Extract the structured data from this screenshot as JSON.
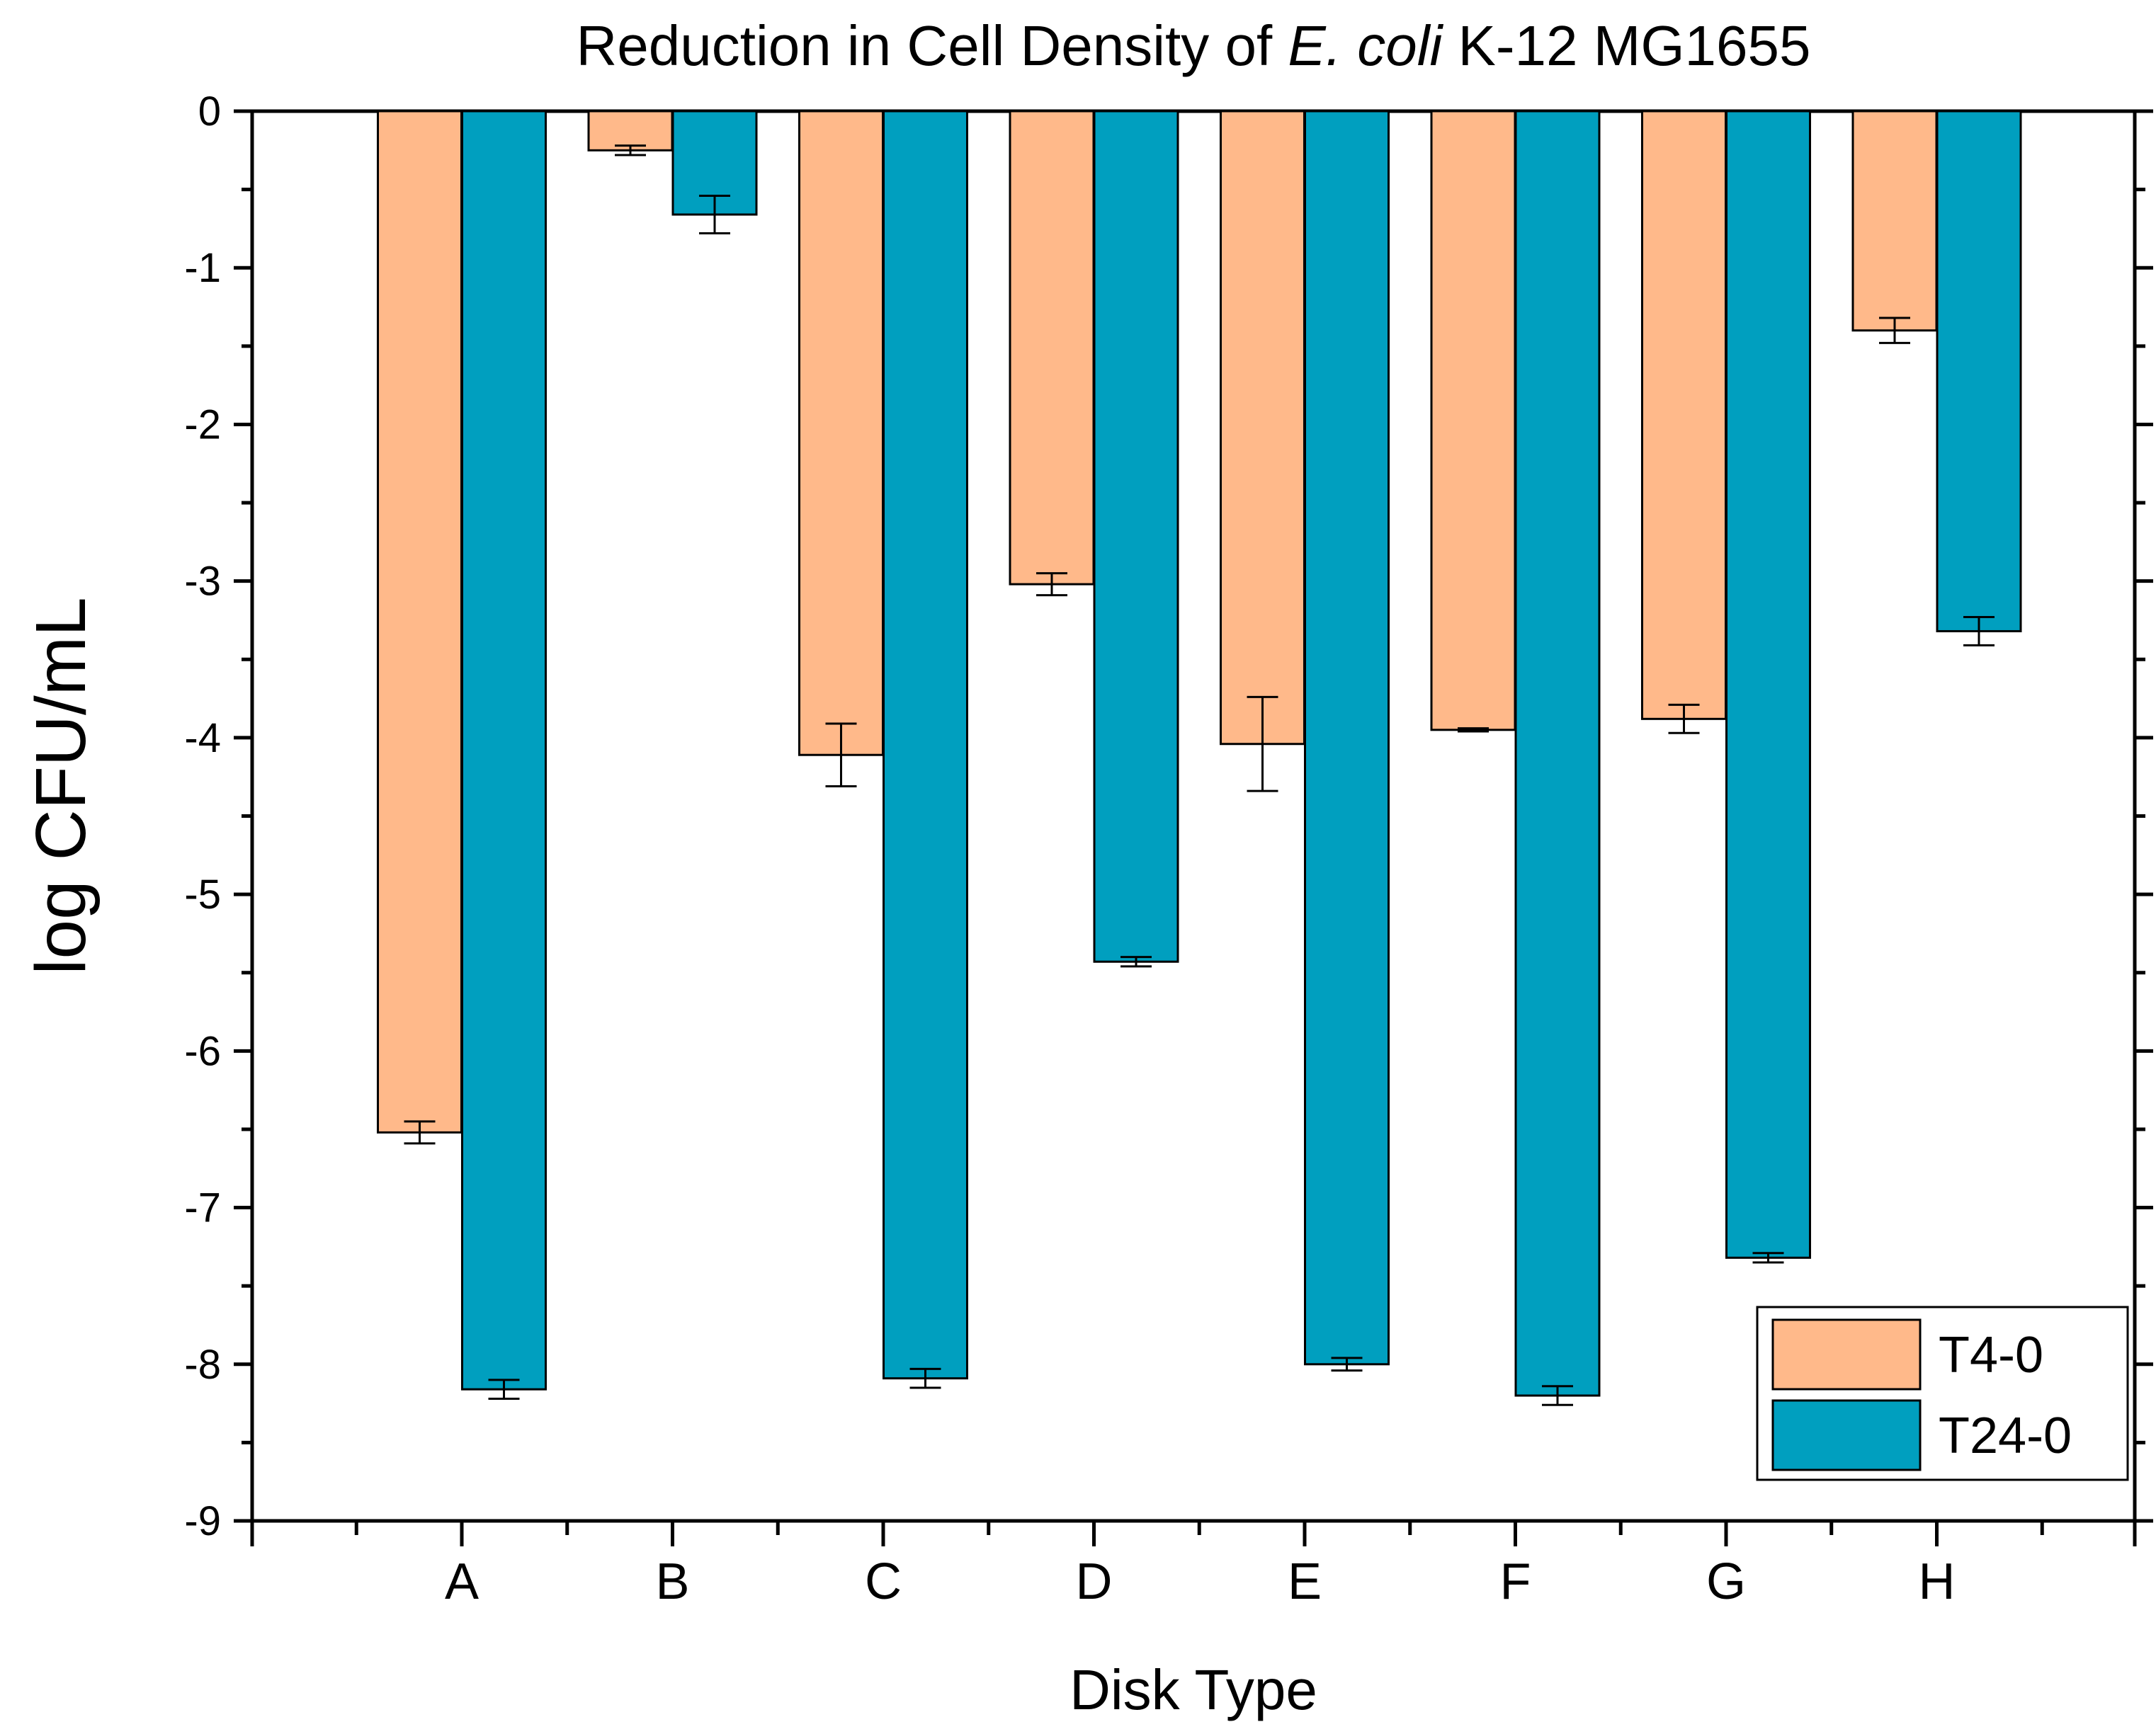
{
  "chart_data": {
    "type": "bar",
    "title_parts": {
      "before": "Reduction in Cell Density of ",
      "italic": "E. coli",
      "after": " K-12 MG1655"
    },
    "xlabel": "Disk Type",
    "ylabel": "log CFU/mL",
    "ylim": [
      -9,
      0
    ],
    "yticks": [
      0,
      -1,
      -2,
      -3,
      -4,
      -5,
      -6,
      -7,
      -8,
      -9
    ],
    "ytick_labels": [
      "0",
      "-1",
      "-2",
      "-3",
      "-4",
      "-5",
      "-6",
      "-7",
      "-8",
      "-9"
    ],
    "categories": [
      "A",
      "B",
      "C",
      "D",
      "E",
      "F",
      "G",
      "H"
    ],
    "series": [
      {
        "name": "T4-0",
        "color": "#FFB98A",
        "values": [
          -6.52,
          -0.25,
          -4.11,
          -3.02,
          -4.04,
          -3.95,
          -3.88,
          -1.4
        ],
        "errors": [
          0.07,
          0.03,
          0.2,
          0.07,
          0.3,
          0.01,
          0.09,
          0.08
        ]
      },
      {
        "name": "T24-0",
        "color": "#009FBF",
        "values": [
          -8.16,
          -0.66,
          -8.09,
          -5.43,
          -8.0,
          -8.2,
          -7.32,
          -3.32
        ],
        "errors": [
          0.06,
          0.12,
          0.06,
          0.03,
          0.04,
          0.06,
          0.03,
          0.09
        ]
      }
    ],
    "legend_position": "bottom-right",
    "grid": false
  }
}
